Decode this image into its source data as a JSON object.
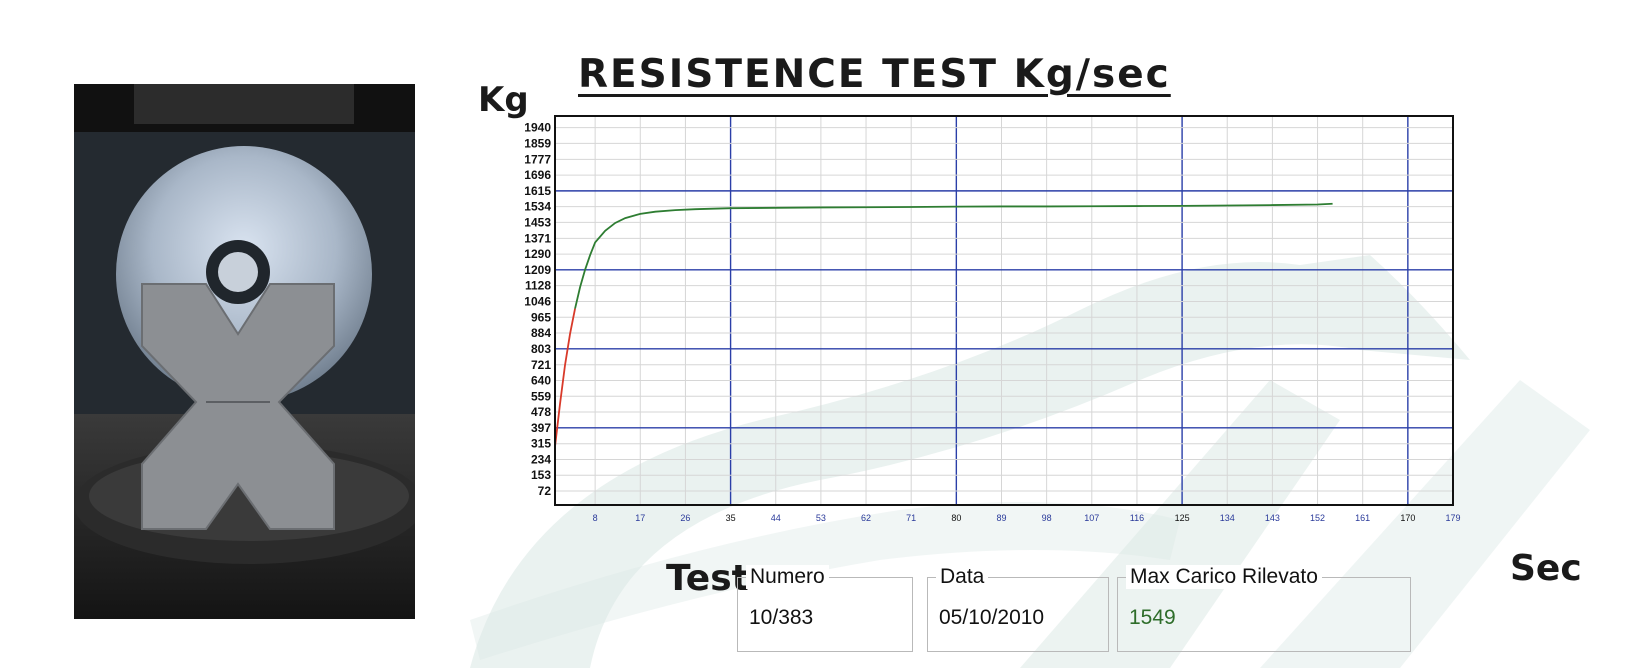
{
  "chart_data": {
    "type": "line",
    "title": "RESISTENCE TEST Kg/sec",
    "ylabel": "Kg",
    "xlabel": "Sec",
    "y_ticks": [
      72,
      153,
      234,
      315,
      397,
      478,
      559,
      640,
      721,
      803,
      884,
      965,
      1046,
      1128,
      1209,
      1290,
      1371,
      1453,
      1534,
      1615,
      1696,
      1777,
      1859,
      1940
    ],
    "x_ticks": [
      8,
      17,
      26,
      35,
      44,
      53,
      62,
      71,
      80,
      89,
      98,
      107,
      116,
      125,
      134,
      143,
      152,
      161,
      170,
      179
    ],
    "major_x": [
      35,
      80,
      125,
      170
    ],
    "major_y": [
      397,
      803,
      1209,
      1615
    ],
    "xlim": [
      0,
      179
    ],
    "ylim": [
      0,
      2000
    ],
    "grid": true,
    "series": [
      {
        "color": "#2e7d32",
        "rise_color": "#d83a2a",
        "x": [
          0,
          1,
          2,
          3,
          4,
          5,
          6,
          7,
          8,
          10,
          12,
          14,
          17,
          20,
          24,
          28,
          35,
          44,
          53,
          62,
          71,
          80,
          89,
          98,
          107,
          116,
          125,
          134,
          143,
          152,
          155
        ],
        "y": [
          300,
          520,
          720,
          880,
          1010,
          1120,
          1210,
          1285,
          1350,
          1410,
          1450,
          1475,
          1497,
          1508,
          1516,
          1521,
          1526,
          1528,
          1530,
          1531,
          1532,
          1534,
          1535,
          1535,
          1536,
          1537,
          1538,
          1540,
          1542,
          1545,
          1549
        ],
        "rise_until_x": 4
      }
    ]
  },
  "labels": {
    "test": "Test",
    "numero": "Numero",
    "data": "Data",
    "max_carico": "Max Carico Rilevato"
  },
  "values": {
    "numero": "10/383",
    "data": "05/10/2010",
    "max_carico": "1549"
  }
}
